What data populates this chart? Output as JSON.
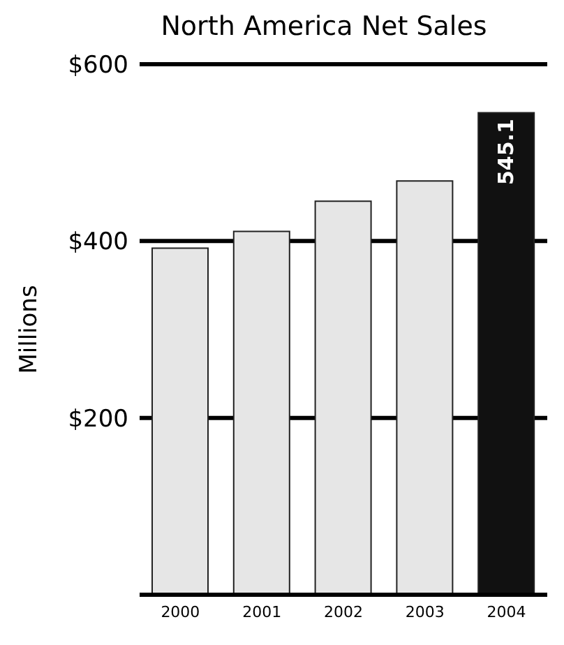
{
  "chart_data": {
    "type": "bar",
    "title": "North America Net Sales",
    "ylabel": "Millions",
    "categories": [
      "2000",
      "2001",
      "2002",
      "2003",
      "2004"
    ],
    "values": [
      392,
      411,
      445,
      468,
      545.1
    ],
    "colors": [
      "#e6e6e6",
      "#e6e6e6",
      "#e6e6e6",
      "#e6e6e6",
      "#111111"
    ],
    "value_labels": [
      null,
      null,
      null,
      null,
      "545.1"
    ],
    "ylim": [
      0,
      600
    ],
    "yticks": [
      {
        "value": 0,
        "label": null
      },
      {
        "value": 200,
        "label": "$200"
      },
      {
        "value": 400,
        "label": "$400"
      },
      {
        "value": 600,
        "label": "$600"
      }
    ],
    "grid": "y"
  }
}
